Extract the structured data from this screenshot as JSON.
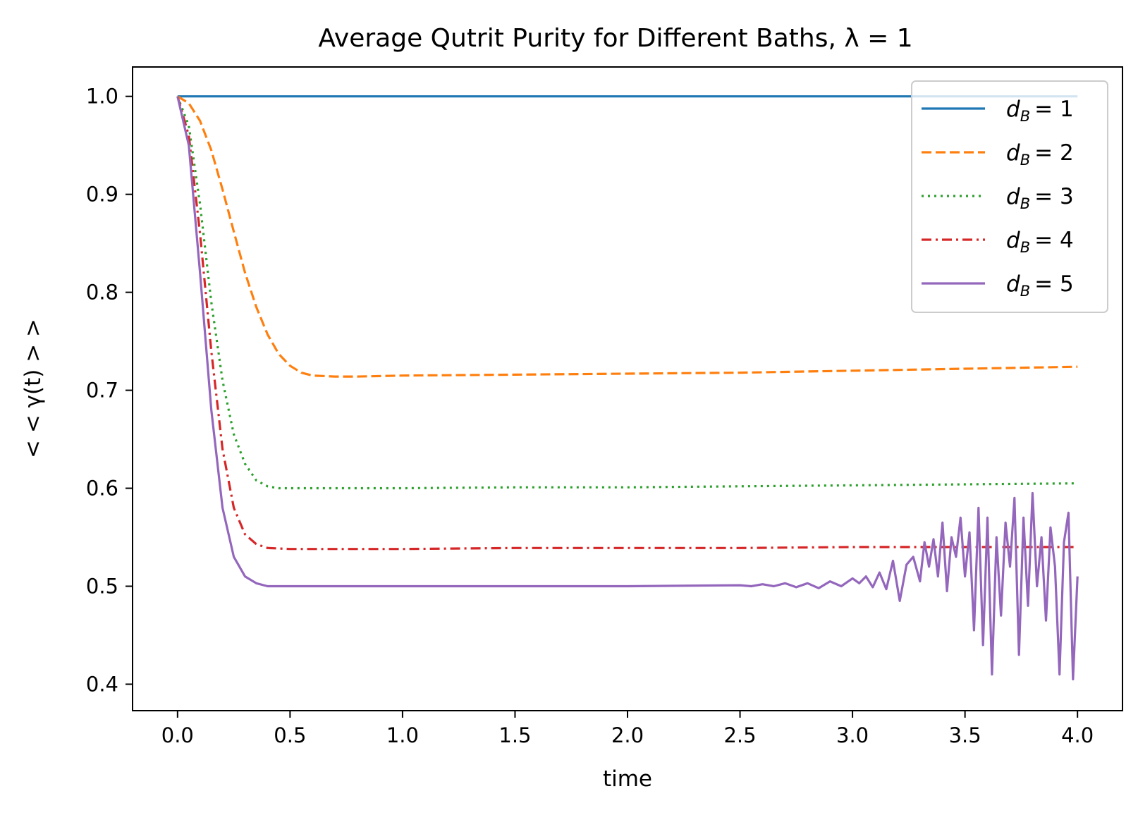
{
  "chart_data": {
    "type": "line",
    "title": "Average Qutrit Purity for Different Baths, λ = 1",
    "xlabel": "time",
    "ylabel": "< < γ(t) > >",
    "xlim": [
      -0.2,
      4.2
    ],
    "ylim": [
      0.373,
      1.03
    ],
    "grid": false,
    "legend_position": "top-right",
    "xticks": [
      0.0,
      0.5,
      1.0,
      1.5,
      2.0,
      2.5,
      3.0,
      3.5,
      4.0
    ],
    "xtick_labels": [
      "0.0",
      "0.5",
      "1.0",
      "1.5",
      "2.0",
      "2.5",
      "3.0",
      "3.5",
      "4.0"
    ],
    "yticks": [
      0.4,
      0.5,
      0.6,
      0.7,
      0.8,
      0.9,
      1.0
    ],
    "ytick_labels": [
      "0.4",
      "0.5",
      "0.6",
      "0.7",
      "0.8",
      "0.9",
      "1.0"
    ],
    "series": [
      {
        "name": "d_B = 1",
        "label_base": "d",
        "label_sub": "B",
        "label_value": "= 1",
        "color": "#1f77b4",
        "style": "solid",
        "x": [
          0.0,
          4.0
        ],
        "y": [
          1.0,
          1.0
        ]
      },
      {
        "name": "d_B = 2",
        "label_base": "d",
        "label_sub": "B",
        "label_value": "= 2",
        "color": "#ff7f0e",
        "style": "dashed",
        "x": [
          0.0,
          0.05,
          0.1,
          0.15,
          0.2,
          0.25,
          0.3,
          0.35,
          0.4,
          0.45,
          0.5,
          0.55,
          0.6,
          0.7,
          0.8,
          1.0,
          1.5,
          2.0,
          2.5,
          3.0,
          3.5,
          4.0
        ],
        "y": [
          1.0,
          0.993,
          0.975,
          0.945,
          0.905,
          0.862,
          0.82,
          0.785,
          0.757,
          0.737,
          0.725,
          0.718,
          0.715,
          0.714,
          0.714,
          0.715,
          0.716,
          0.717,
          0.718,
          0.72,
          0.722,
          0.724
        ]
      },
      {
        "name": "d_B = 3",
        "label_base": "d",
        "label_sub": "B",
        "label_value": "= 3",
        "color": "#2ca02c",
        "style": "dotted",
        "x": [
          0.0,
          0.05,
          0.1,
          0.15,
          0.2,
          0.25,
          0.3,
          0.35,
          0.4,
          0.45,
          0.5,
          0.6,
          0.8,
          1.0,
          1.5,
          2.0,
          2.5,
          3.0,
          3.5,
          4.0
        ],
        "y": [
          1.0,
          0.97,
          0.89,
          0.79,
          0.71,
          0.655,
          0.625,
          0.608,
          0.602,
          0.6,
          0.6,
          0.6,
          0.6,
          0.6,
          0.601,
          0.601,
          0.602,
          0.603,
          0.604,
          0.605
        ]
      },
      {
        "name": "d_B = 4",
        "label_base": "d",
        "label_sub": "B",
        "label_value": "= 4",
        "color": "#d62728",
        "style": "dashdot",
        "x": [
          0.0,
          0.05,
          0.1,
          0.15,
          0.2,
          0.25,
          0.3,
          0.35,
          0.4,
          0.5,
          0.6,
          1.0,
          1.5,
          2.0,
          2.5,
          3.0,
          3.5,
          4.0
        ],
        "y": [
          1.0,
          0.96,
          0.86,
          0.74,
          0.64,
          0.58,
          0.553,
          0.543,
          0.539,
          0.538,
          0.538,
          0.538,
          0.539,
          0.539,
          0.539,
          0.54,
          0.54,
          0.54
        ]
      },
      {
        "name": "d_B = 5",
        "label_base": "d",
        "label_sub": "B",
        "label_value": "= 5",
        "color": "#9467bd",
        "style": "solid",
        "x": [
          0.0,
          0.05,
          0.1,
          0.15,
          0.2,
          0.25,
          0.3,
          0.35,
          0.4,
          0.45,
          0.5,
          1.0,
          1.5,
          2.0,
          2.5,
          2.55,
          2.6,
          2.65,
          2.7,
          2.75,
          2.8,
          2.85,
          2.9,
          2.95,
          3.0,
          3.03,
          3.06,
          3.09,
          3.12,
          3.15,
          3.18,
          3.21,
          3.24,
          3.27,
          3.3,
          3.32,
          3.34,
          3.36,
          3.38,
          3.4,
          3.42,
          3.44,
          3.46,
          3.48,
          3.5,
          3.52,
          3.54,
          3.56,
          3.58,
          3.6,
          3.62,
          3.64,
          3.66,
          3.68,
          3.7,
          3.72,
          3.74,
          3.76,
          3.78,
          3.8,
          3.82,
          3.84,
          3.86,
          3.88,
          3.9,
          3.92,
          3.94,
          3.96,
          3.98,
          4.0
        ],
        "y": [
          1.0,
          0.95,
          0.82,
          0.68,
          0.58,
          0.53,
          0.51,
          0.503,
          0.5,
          0.5,
          0.5,
          0.5,
          0.5,
          0.5,
          0.501,
          0.5,
          0.502,
          0.5,
          0.503,
          0.499,
          0.503,
          0.498,
          0.505,
          0.5,
          0.508,
          0.503,
          0.51,
          0.499,
          0.514,
          0.497,
          0.526,
          0.485,
          0.522,
          0.53,
          0.505,
          0.545,
          0.52,
          0.548,
          0.51,
          0.565,
          0.495,
          0.55,
          0.53,
          0.57,
          0.51,
          0.555,
          0.455,
          0.58,
          0.44,
          0.57,
          0.41,
          0.55,
          0.47,
          0.565,
          0.52,
          0.59,
          0.43,
          0.57,
          0.48,
          0.595,
          0.5,
          0.55,
          0.465,
          0.56,
          0.52,
          0.41,
          0.545,
          0.575,
          0.405,
          0.51
        ]
      }
    ]
  }
}
